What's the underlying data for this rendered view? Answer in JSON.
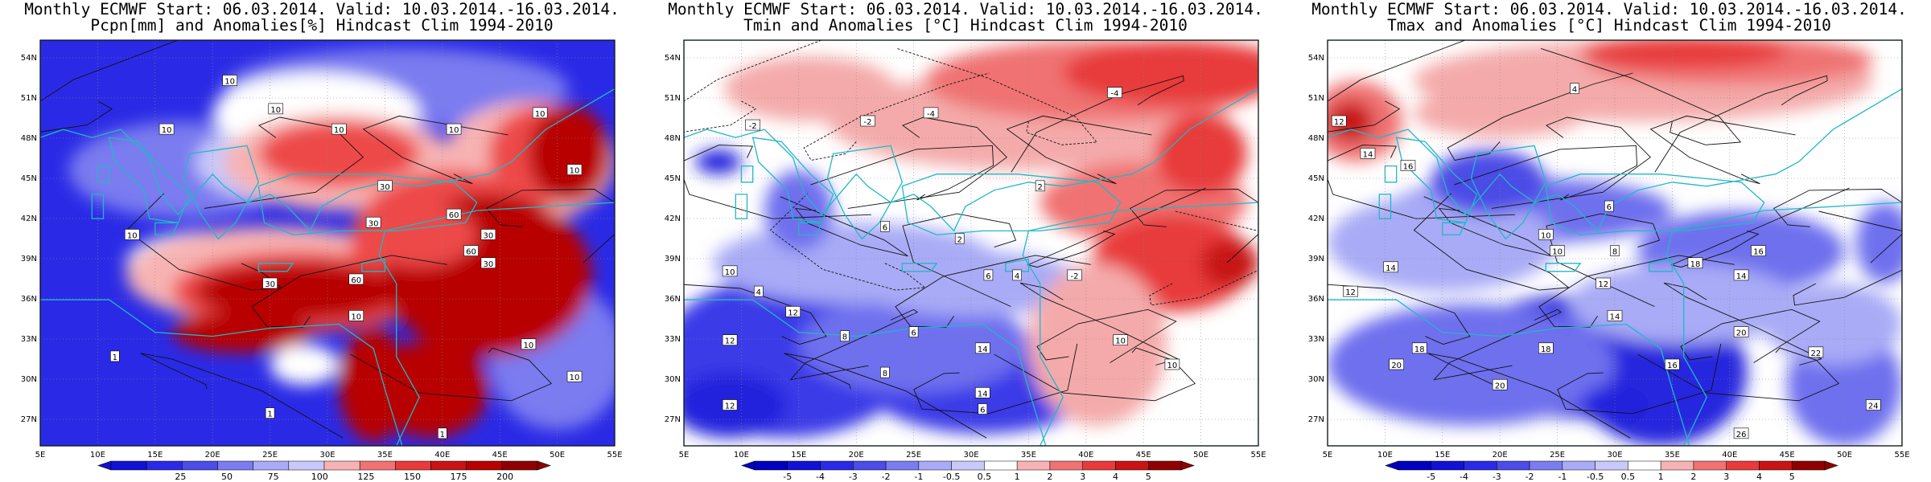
{
  "panels": [
    {
      "title_line1": "Monthly ECMWF Start: 06.03.2014. Valid: 10.03.2014.-16.03.2014.",
      "title_line2": "Pcpn[mm] and Anomalies[%] Hindcast Clim 1994-2010",
      "colorbar_labels": [
        "25",
        "50",
        "75",
        "100",
        "125",
        "150",
        "175",
        "200"
      ],
      "contour_labels": [
        "10",
        "10",
        "10",
        "10",
        "10",
        "10",
        "10",
        "10",
        "30",
        "30",
        "30",
        "30",
        "60",
        "60",
        "60",
        "30",
        "10",
        "10",
        "10",
        "1",
        "1",
        "1"
      ],
      "colors": {
        "strong_negative": "#2a2ae6",
        "negative": "#7a7cf0",
        "weak_negative": "#c8c9fa",
        "neutral": "#ffffff",
        "weak_positive": "#f7b3b3",
        "positive": "#ee4a4a",
        "strong_positive": "#b80000"
      }
    },
    {
      "title_line1": "Monthly ECMWF Start: 06.03.2014. Valid: 10.03.2014.-16.03.2014.",
      "title_line2": "Tmin and Anomalies [°C] Hindcast Clim 1994-2010",
      "colorbar_labels": [
        "-5",
        "-4",
        "-3",
        "-2",
        "-1",
        "-0.5",
        "0.5",
        "1",
        "2",
        "3",
        "4",
        "5"
      ],
      "contour_labels": [
        "-2",
        "-4",
        "-2",
        "-4",
        "-2",
        "2",
        "2",
        "6",
        "4",
        "8",
        "12",
        "10",
        "12",
        "14",
        "6",
        "8",
        "14",
        "10",
        "6",
        "4",
        "6",
        "12",
        "10"
      ]
    },
    {
      "title_line1": "Monthly ECMWF Start: 06.03.2014. Valid: 10.03.2014.-16.03.2014.",
      "title_line2": "Tmax and Anomalies [°C] Hindcast Clim 1994-2010",
      "colorbar_labels": [
        "-5",
        "-4",
        "-3",
        "-2",
        "-1",
        "-0.5",
        "0.5",
        "1",
        "2",
        "3",
        "4",
        "5"
      ],
      "contour_labels": [
        "12",
        "14",
        "16",
        "4",
        "6",
        "8",
        "10",
        "10",
        "12",
        "14",
        "16",
        "18",
        "20",
        "18",
        "14",
        "20",
        "22",
        "24",
        "20",
        "18",
        "16",
        "26",
        "12",
        "14"
      ]
    }
  ],
  "axes": {
    "lat_labels": [
      "54N",
      "51N",
      "48N",
      "45N",
      "42N",
      "39N",
      "36N",
      "33N",
      "30N",
      "27N"
    ],
    "lon_labels": [
      "5E",
      "10E",
      "15E",
      "20E",
      "25E",
      "30E",
      "35E",
      "40E",
      "45E",
      "50E",
      "55E"
    ]
  }
}
